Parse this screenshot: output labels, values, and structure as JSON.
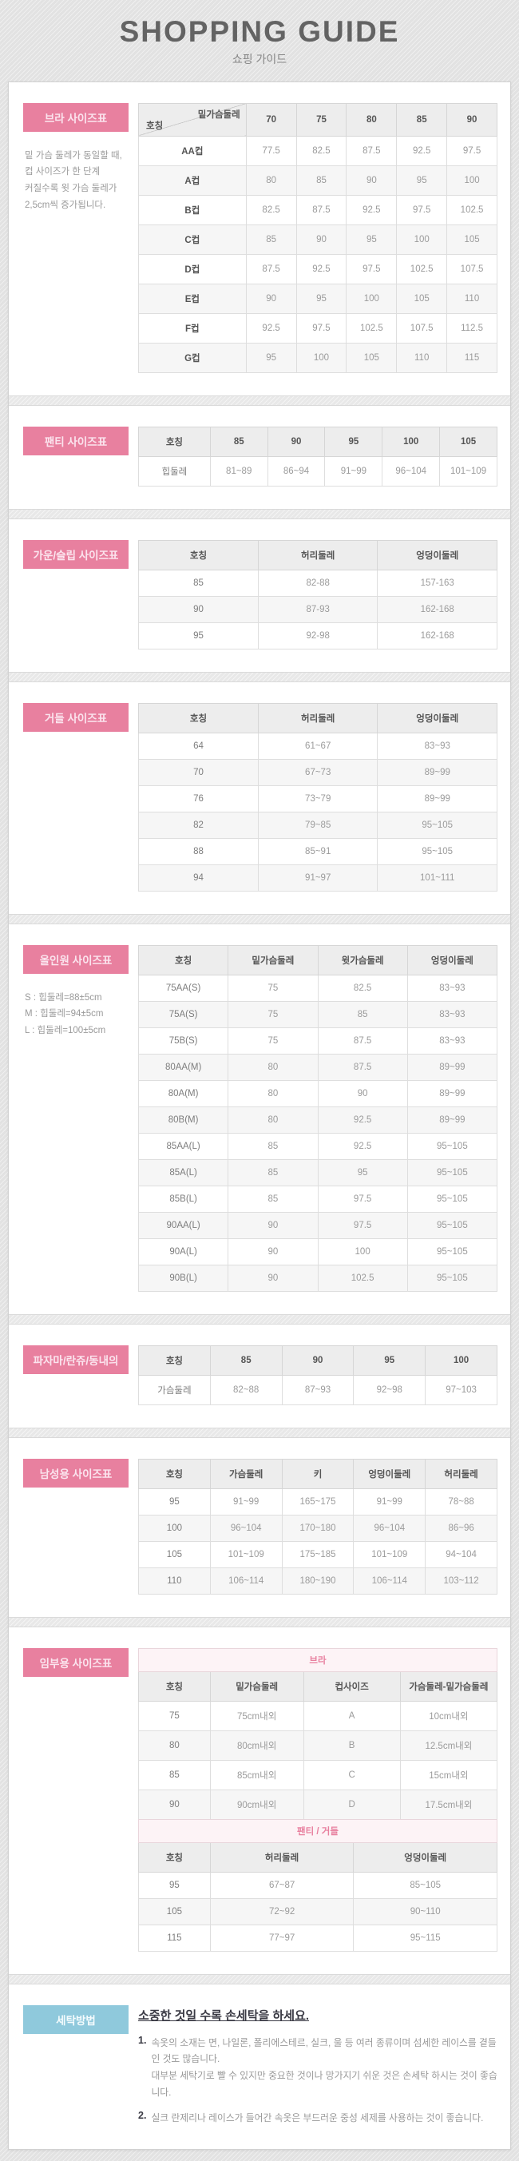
{
  "page": {
    "title": "SHOPPING GUIDE",
    "subtitle": "쇼핑 가이드"
  },
  "colors": {
    "accent_pink": "#e8809f",
    "accent_blue": "#8fc9dc",
    "header_gray": "#ededed"
  },
  "sections": {
    "bra": {
      "label": "브라 사이즈표",
      "note": "밑 가슴 둘레가 동일할 때,\n컵 사이즈가 한 단계\n커질수록 윗 가슴 둘레가\n2,5cm씩 증가됩니다.",
      "table": {
        "diagonal": {
          "top": "밑가슴둘레",
          "bottom": "호칭"
        },
        "headers": [
          "",
          "70",
          "75",
          "80",
          "85",
          "90"
        ],
        "col_widths": [
          "30%",
          "14%",
          "14%",
          "14%",
          "14%",
          "14%"
        ],
        "rows": [
          [
            "AA컵",
            "77.5",
            "82.5",
            "87.5",
            "92.5",
            "97.5"
          ],
          [
            "A컵",
            "80",
            "85",
            "90",
            "95",
            "100"
          ],
          [
            "B컵",
            "82.5",
            "87.5",
            "92.5",
            "97.5",
            "102.5"
          ],
          [
            "C컵",
            "85",
            "90",
            "95",
            "100",
            "105"
          ],
          [
            "D컵",
            "87.5",
            "92.5",
            "97.5",
            "102.5",
            "107.5"
          ],
          [
            "E컵",
            "90",
            "95",
            "100",
            "105",
            "110"
          ],
          [
            "F컵",
            "92.5",
            "97.5",
            "102.5",
            "107.5",
            "112.5"
          ],
          [
            "G컵",
            "95",
            "100",
            "105",
            "110",
            "115"
          ]
        ]
      }
    },
    "panty": {
      "label": "팬티 사이즈표",
      "table": {
        "headers": [
          "호칭",
          "85",
          "90",
          "95",
          "100",
          "105"
        ],
        "col_widths": [
          "20%",
          "16%",
          "16%",
          "16%",
          "16%",
          "16%"
        ],
        "rows": [
          [
            "힙둘레",
            "81~89",
            "86~94",
            "91~99",
            "96~104",
            "101~109"
          ]
        ]
      }
    },
    "gown": {
      "label": "가운/슬립 사이즈표",
      "table": {
        "headers": [
          "호칭",
          "허리둘레",
          "엉덩이둘레"
        ],
        "col_widths": [
          "33.4%",
          "33.3%",
          "33.3%"
        ],
        "rows": [
          [
            "85",
            "82-88",
            "157-163"
          ],
          [
            "90",
            "87-93",
            "162-168"
          ],
          [
            "95",
            "92-98",
            "162-168"
          ]
        ]
      }
    },
    "girdle": {
      "label": "거들 사이즈표",
      "table": {
        "headers": [
          "호칭",
          "허리둘레",
          "엉덩이둘레"
        ],
        "col_widths": [
          "33.4%",
          "33.3%",
          "33.3%"
        ],
        "rows": [
          [
            "64",
            "61~67",
            "83~93"
          ],
          [
            "70",
            "67~73",
            "89~99"
          ],
          [
            "76",
            "73~79",
            "89~99"
          ],
          [
            "82",
            "79~85",
            "95~105"
          ],
          [
            "88",
            "85~91",
            "95~105"
          ],
          [
            "94",
            "91~97",
            "101~111"
          ]
        ]
      }
    },
    "allinone": {
      "label": "올인원 사이즈표",
      "note": "S : 힙둘레=88±5cm\nM : 힙둘레=94±5cm\nL : 힙둘레=100±5cm",
      "table": {
        "headers": [
          "호칭",
          "밑가슴둘레",
          "윗가슴둘레",
          "엉덩이둘레"
        ],
        "col_widths": [
          "25%",
          "25%",
          "25%",
          "25%"
        ],
        "rows": [
          [
            "75AA(S)",
            "75",
            "82.5",
            "83~93"
          ],
          [
            "75A(S)",
            "75",
            "85",
            "83~93"
          ],
          [
            "75B(S)",
            "75",
            "87.5",
            "83~93"
          ],
          [
            "80AA(M)",
            "80",
            "87.5",
            "89~99"
          ],
          [
            "80A(M)",
            "80",
            "90",
            "89~99"
          ],
          [
            "80B(M)",
            "80",
            "92.5",
            "89~99"
          ],
          [
            "85AA(L)",
            "85",
            "92.5",
            "95~105"
          ],
          [
            "85A(L)",
            "85",
            "95",
            "95~105"
          ],
          [
            "85B(L)",
            "85",
            "97.5",
            "95~105"
          ],
          [
            "90AA(L)",
            "90",
            "97.5",
            "95~105"
          ],
          [
            "90A(L)",
            "90",
            "100",
            "95~105"
          ],
          [
            "90B(L)",
            "90",
            "102.5",
            "95~105"
          ]
        ]
      }
    },
    "pajama": {
      "label": "파자마/란쥬/동내의",
      "table": {
        "headers": [
          "호칭",
          "85",
          "90",
          "95",
          "100"
        ],
        "col_widths": [
          "20%",
          "20%",
          "20%",
          "20%",
          "20%"
        ],
        "rows": [
          [
            "가슴둘레",
            "82~88",
            "87~93",
            "92~98",
            "97~103"
          ]
        ]
      }
    },
    "mens": {
      "label": "남성용 사이즈표",
      "table": {
        "headers": [
          "호칭",
          "가슴둘레",
          "키",
          "엉덩이둘레",
          "허리둘레"
        ],
        "col_widths": [
          "20%",
          "20%",
          "20%",
          "20%",
          "20%"
        ],
        "rows": [
          [
            "95",
            "91~99",
            "165~175",
            "91~99",
            "78~88"
          ],
          [
            "100",
            "96~104",
            "170~180",
            "96~104",
            "86~96"
          ],
          [
            "105",
            "101~109",
            "175~185",
            "101~109",
            "94~104"
          ],
          [
            "110",
            "106~114",
            "180~190",
            "106~114",
            "103~112"
          ]
        ]
      }
    },
    "maternity": {
      "label": "임부용 사이즈표",
      "table_bra": {
        "title": "브라",
        "headers": [
          "호칭",
          "밑가슴둘레",
          "컵사이즈",
          "가슴둘레-밑가슴둘레"
        ],
        "col_widths": [
          "20%",
          "26%",
          "27%",
          "27%"
        ],
        "rows": [
          [
            "75",
            "75cm내외",
            "A",
            "10cm내외"
          ],
          [
            "80",
            "80cm내외",
            "B",
            "12.5cm내외"
          ],
          [
            "85",
            "85cm내외",
            "C",
            "15cm내외"
          ],
          [
            "90",
            "90cm내외",
            "D",
            "17.5cm내외"
          ]
        ]
      },
      "table_panty": {
        "title": "팬티 / 거들",
        "headers": [
          "호칭",
          "허리둘레",
          "엉덩이둘레"
        ],
        "col_widths": [
          "20%",
          "40%",
          "40%"
        ],
        "rows": [
          [
            "95",
            "67~87",
            "85~105"
          ],
          [
            "105",
            "72~92",
            "90~110"
          ],
          [
            "115",
            "77~97",
            "95~115"
          ]
        ]
      }
    }
  },
  "washing": {
    "label": "세탁방법",
    "title": "소중한 것일 수록 손세탁을 하세요.",
    "items": [
      {
        "num": "1.",
        "text": "속옷의 소재는 면, 나일론, 폴리에스테르, 실크, 울 등 여러 종류이며 섬세한 레이스를 곁들인 것도 많습니다.\n대부분 세탁기로 빨 수 있지만 중요한 것이나 망가지기 쉬운 것은 손세탁 하시는 것이 좋습니다."
      },
      {
        "num": "2.",
        "text": "실크 란제리나 레이스가 들어간 속옷은 부드러운 중성 세제를 사용하는 것이 좋습니다."
      }
    ]
  }
}
